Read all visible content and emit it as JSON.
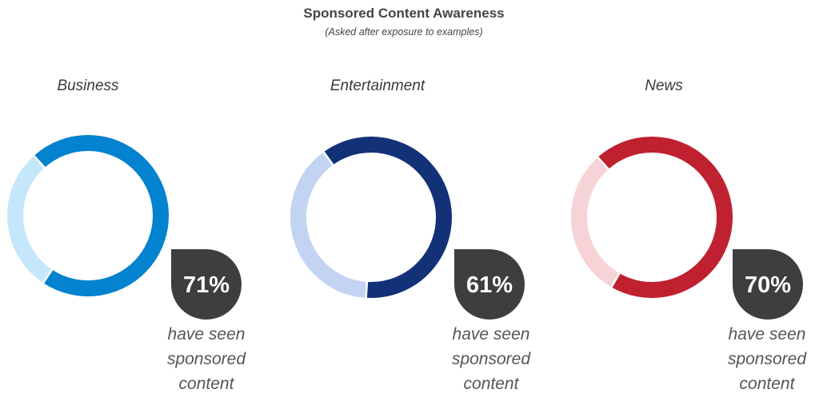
{
  "chart_data": {
    "type": "pie",
    "title": "Sponsored Content Awareness",
    "subtitle": "(Asked after exposure to examples)",
    "caption_lines": [
      "have seen",
      "sponsored",
      "content"
    ],
    "charts": [
      {
        "category": "Business",
        "value": 71,
        "label": "71%",
        "color": "#0282cf",
        "remainder_color": "#c5e7fb"
      },
      {
        "category": "Entertainment",
        "value": 61,
        "label": "61%",
        "color": "#123177",
        "remainder_color": "#c3d3f2"
      },
      {
        "category": "News",
        "value": 70,
        "label": "70%",
        "color": "#c02130",
        "remainder_color": "#f6d3d7"
      }
    ],
    "badge_color": "#3e3e3e"
  }
}
